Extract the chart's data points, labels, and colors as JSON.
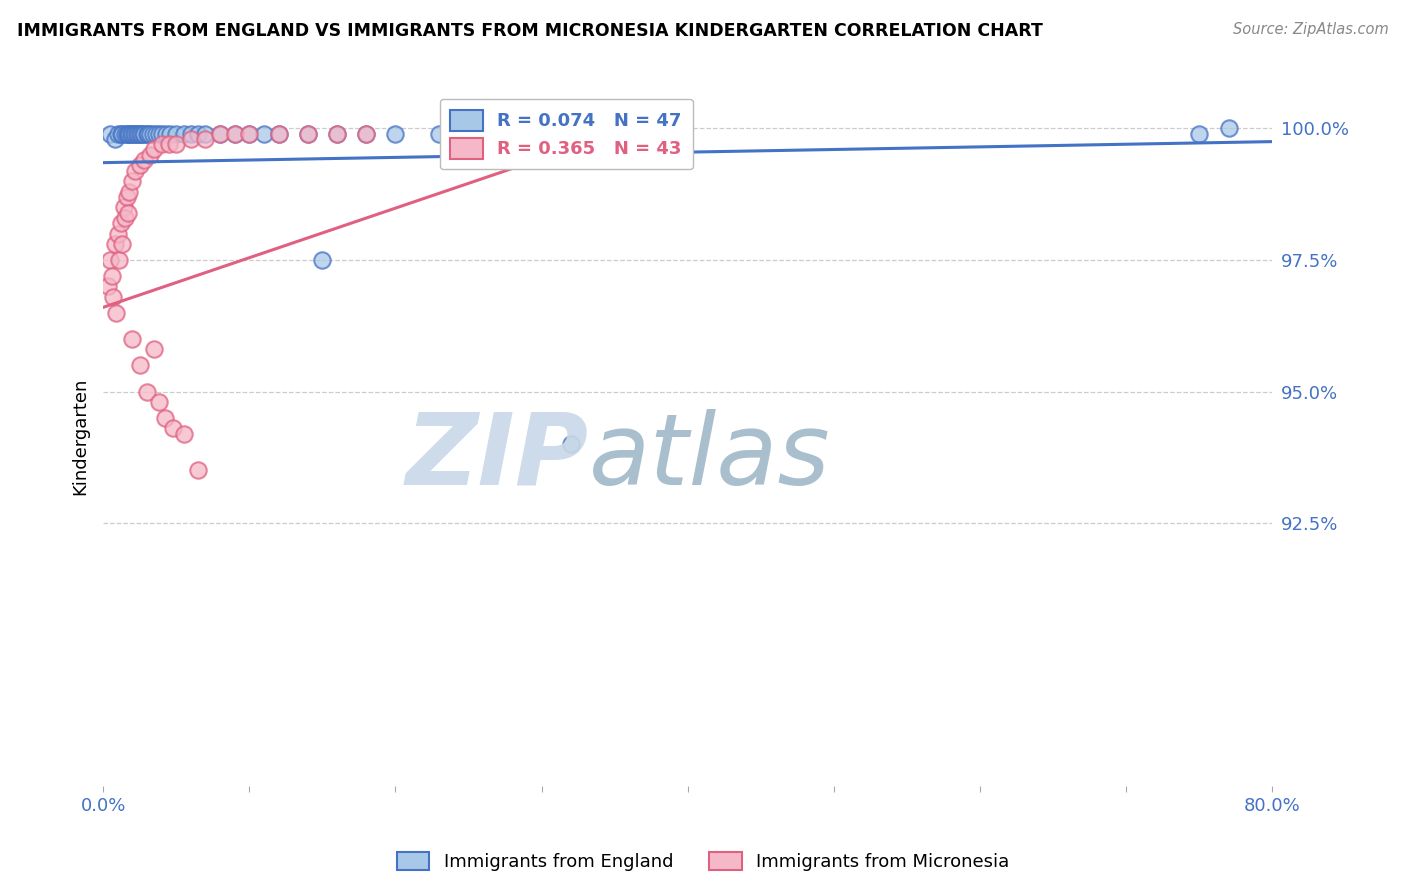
{
  "title": "IMMIGRANTS FROM ENGLAND VS IMMIGRANTS FROM MICRONESIA KINDERGARTEN CORRELATION CHART",
  "source": "Source: ZipAtlas.com",
  "ylabel": "Kindergarten",
  "legend_england": "Immigrants from England",
  "legend_micronesia": "Immigrants from Micronesia",
  "r_england": 0.074,
  "n_england": 47,
  "r_micronesia": 0.365,
  "n_micronesia": 43,
  "color_england_fill": "#a8c8e8",
  "color_micronesia_fill": "#f4b8c8",
  "color_england_edge": "#4472c4",
  "color_micronesia_edge": "#e06080",
  "color_england_line": "#4472c4",
  "color_micronesia_line": "#e06080",
  "color_tick_labels": "#4472c4",
  "xlim": [
    0.0,
    0.8
  ],
  "ylim": [
    0.875,
    1.008
  ],
  "yticks": [
    0.925,
    0.95,
    0.975,
    1.0
  ],
  "ytick_labels": [
    "92.5%",
    "95.0%",
    "97.5%",
    "100.0%"
  ],
  "xticks": [
    0.0,
    0.1,
    0.2,
    0.3,
    0.4,
    0.5,
    0.6,
    0.7,
    0.8
  ],
  "xtick_labels": [
    "0.0%",
    "",
    "",
    "",
    "",
    "",
    "",
    "",
    "80.0%"
  ],
  "england_x": [
    0.005,
    0.008,
    0.01,
    0.012,
    0.013,
    0.015,
    0.016,
    0.017,
    0.018,
    0.019,
    0.02,
    0.021,
    0.022,
    0.023,
    0.024,
    0.025,
    0.026,
    0.027,
    0.028,
    0.03,
    0.031,
    0.032,
    0.034,
    0.036,
    0.038,
    0.04,
    0.043,
    0.046,
    0.05,
    0.055,
    0.06,
    0.065,
    0.07,
    0.08,
    0.09,
    0.1,
    0.11,
    0.12,
    0.14,
    0.16,
    0.18,
    0.2,
    0.23,
    0.15,
    0.32,
    0.75,
    0.77
  ],
  "england_y": [
    0.999,
    0.998,
    0.999,
    0.999,
    0.999,
    0.999,
    0.999,
    0.999,
    0.999,
    0.999,
    0.999,
    0.999,
    0.999,
    0.999,
    0.999,
    0.999,
    0.999,
    0.999,
    0.999,
    0.999,
    0.999,
    0.999,
    0.999,
    0.999,
    0.999,
    0.999,
    0.999,
    0.999,
    0.999,
    0.999,
    0.999,
    0.999,
    0.999,
    0.999,
    0.999,
    0.999,
    0.999,
    0.999,
    0.999,
    0.999,
    0.999,
    0.999,
    0.999,
    0.975,
    0.94,
    0.999,
    1.0
  ],
  "micronesia_x": [
    0.003,
    0.005,
    0.006,
    0.007,
    0.008,
    0.009,
    0.01,
    0.011,
    0.012,
    0.013,
    0.014,
    0.015,
    0.016,
    0.017,
    0.018,
    0.02,
    0.022,
    0.025,
    0.028,
    0.032,
    0.035,
    0.04,
    0.045,
    0.05,
    0.06,
    0.07,
    0.08,
    0.09,
    0.1,
    0.12,
    0.14,
    0.16,
    0.18,
    0.02,
    0.025,
    0.03,
    0.035,
    0.038,
    0.042,
    0.048,
    0.055,
    0.065,
    0.35
  ],
  "micronesia_y": [
    0.97,
    0.975,
    0.972,
    0.968,
    0.978,
    0.965,
    0.98,
    0.975,
    0.982,
    0.978,
    0.985,
    0.983,
    0.987,
    0.984,
    0.988,
    0.99,
    0.992,
    0.993,
    0.994,
    0.995,
    0.996,
    0.997,
    0.997,
    0.997,
    0.998,
    0.998,
    0.999,
    0.999,
    0.999,
    0.999,
    0.999,
    0.999,
    0.999,
    0.96,
    0.955,
    0.95,
    0.958,
    0.948,
    0.945,
    0.943,
    0.942,
    0.935,
    0.999
  ],
  "england_trendline_x": [
    0.0,
    0.8
  ],
  "england_trendline_y": [
    0.9935,
    0.9975
  ],
  "micronesia_trendline_x": [
    0.0,
    0.35
  ],
  "micronesia_trendline_y": [
    0.966,
    0.999
  ],
  "background_color": "#ffffff",
  "grid_color": "#cccccc",
  "watermark_zip": "ZIP",
  "watermark_atlas": "atlas",
  "watermark_color_zip": "#c8d8e8",
  "watermark_color_atlas": "#a0b8c8"
}
